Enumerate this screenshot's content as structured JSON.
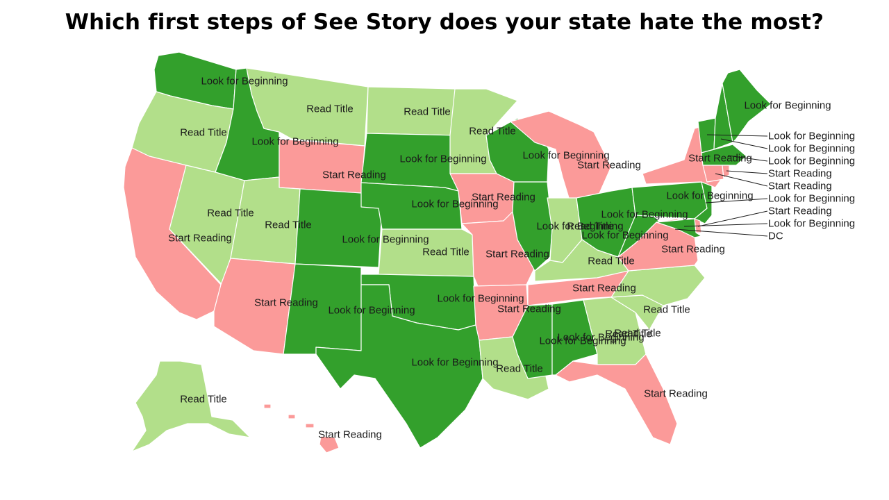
{
  "title": "Which first steps of See Story does your state hate the most?",
  "colors": {
    "Look for Beginning": "#33a02c",
    "Read Title": "#b2df8a",
    "Start Reading": "#fb9a99"
  },
  "states": {
    "WA": "Look for Beginning",
    "OR": "Read Title",
    "CA": "Start Reading",
    "ID": "Look for Beginning",
    "NV": "Read Title",
    "MT": "Read Title",
    "WY": "Start Reading",
    "UT": "Read Title",
    "AZ": "Start Reading",
    "CO": "Look for Beginning",
    "NM": "Look for Beginning",
    "ND": "Read Title",
    "SD": "Look for Beginning",
    "NE": "Look for Beginning",
    "KS": "Read Title",
    "OK": "Look for Beginning",
    "TX": "Look for Beginning",
    "MN": "Read Title",
    "IA": "Start Reading",
    "MO": "Start Reading",
    "AR": "Start Reading",
    "LA": "Read Title",
    "WI": "Look for Beginning",
    "IL": "Look for Beginning",
    "MI": "Start Reading",
    "IN": "Read Title",
    "OH": "Look for Beginning",
    "KY": "Read Title",
    "TN": "Start Reading",
    "MS": "Look for Beginning",
    "AL": "Look for Beginning",
    "GA": "Read Title",
    "FL": "Start Reading",
    "SC": "Read Title",
    "NC": "Read Title",
    "VA": "Start Reading",
    "WV": "Look for Beginning",
    "PA": "Look for Beginning",
    "NY": "Start Reading",
    "ME": "Look for Beginning",
    "VT": "Look for Beginning",
    "NH": "Look for Beginning",
    "MA": "Look for Beginning",
    "RI": "Start Reading",
    "CT": "Start Reading",
    "NJ": "Look for Beginning",
    "DE": "Start Reading",
    "MD": "Look for Beginning",
    "DC": "DC",
    "AK": "Read Title",
    "HI": "Start Reading"
  }
}
